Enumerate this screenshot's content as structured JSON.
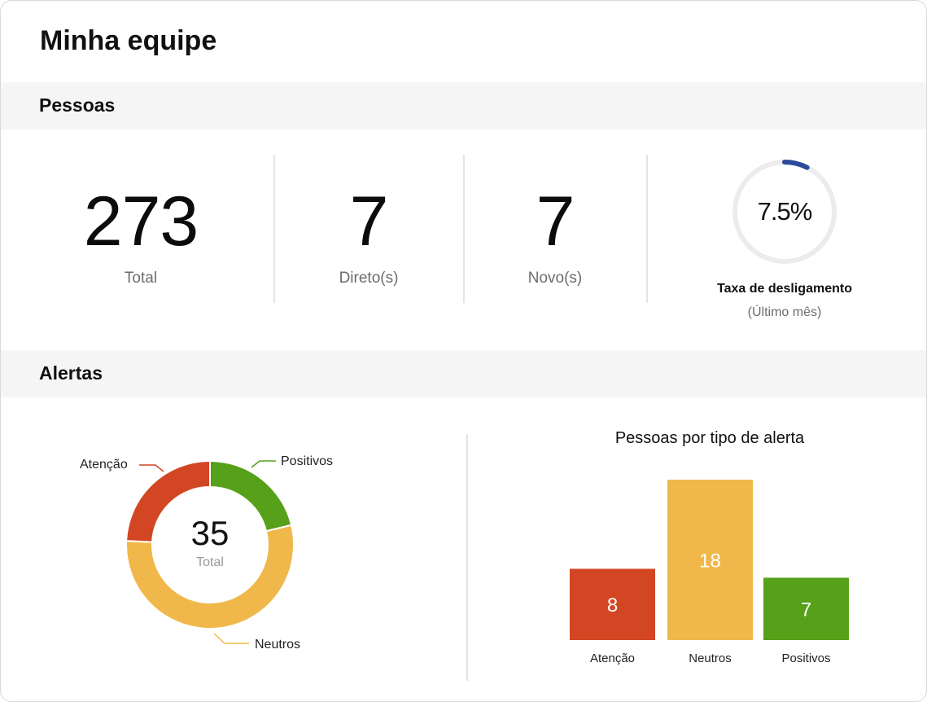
{
  "page": {
    "title": "Minha equipe"
  },
  "pessoas": {
    "section_label": "Pessoas",
    "total": {
      "value": "273",
      "caption": "Total"
    },
    "diretos": {
      "value": "7",
      "caption": "Direto(s)"
    },
    "novos": {
      "value": "7",
      "caption": "Novo(s)"
    },
    "taxa": {
      "value_text": "7.5%",
      "value": 7.5,
      "title": "Taxa de desligamento",
      "subtitle": "(Último mês)",
      "ring_color": "#2c4a9a",
      "track_color": "#ececec"
    }
  },
  "alertas": {
    "section_label": "Alertas",
    "donut": {
      "total_value": "35",
      "total_caption": "Total",
      "labels": {
        "atencao": "Atenção",
        "positivos": "Positivos",
        "neutros": "Neutros"
      }
    },
    "bar_title": "Pessoas por tipo de alerta"
  },
  "chart_data": {
    "type": "bar",
    "title": "Pessoas por tipo de alerta",
    "categories": [
      "Atenção",
      "Neutros",
      "Positivos"
    ],
    "values": [
      8,
      18,
      7
    ],
    "colors": [
      "#d24623",
      "#f0b84a",
      "#57a01a"
    ],
    "xlabel": "",
    "ylabel": "",
    "grid": false
  }
}
